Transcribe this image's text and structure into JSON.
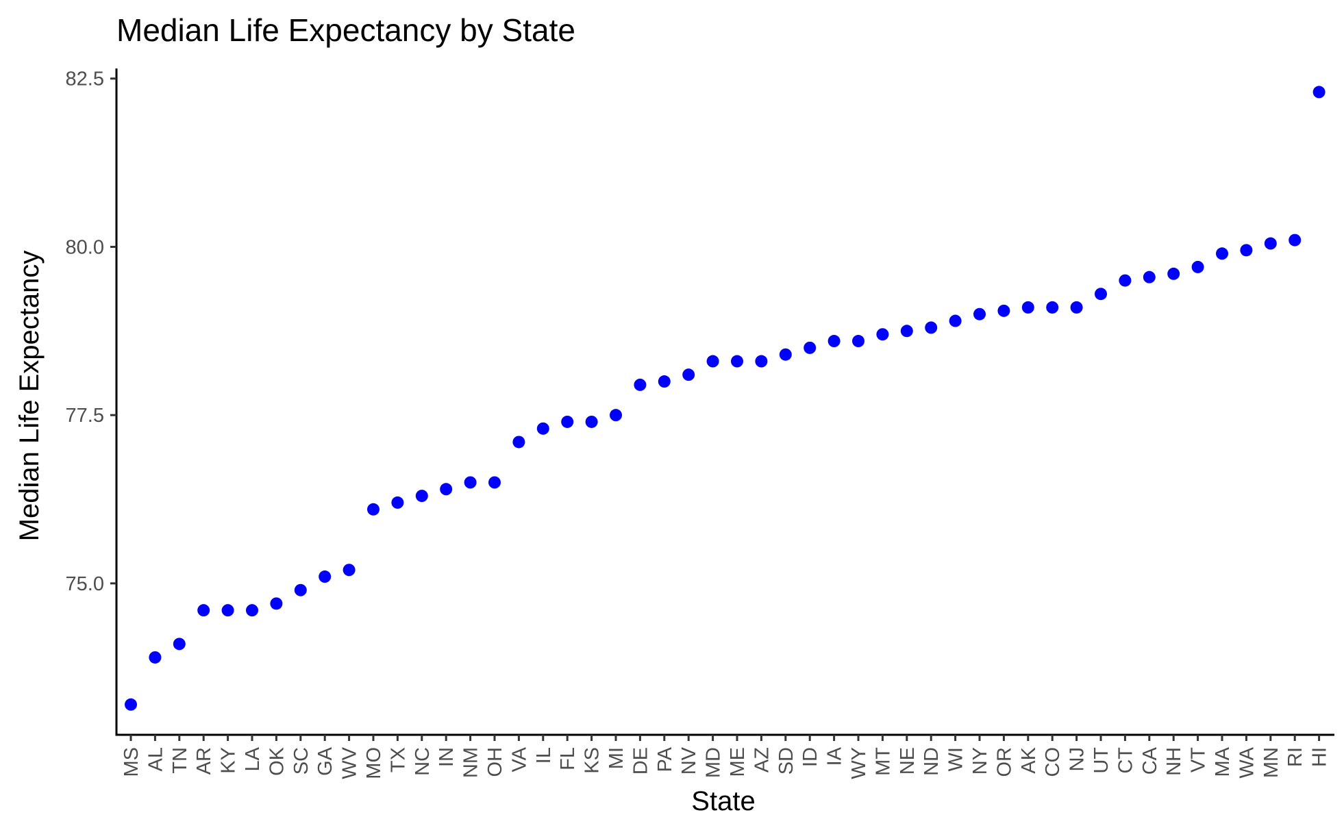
{
  "chart_data": {
    "type": "scatter",
    "title": "Median Life Expectancy by State",
    "xlabel": "State",
    "ylabel": "Median Life Expectancy",
    "ylim": [
      72.75,
      82.65
    ],
    "yticks": [
      "75.0",
      "77.5",
      "80.0",
      "82.5"
    ],
    "ytick_values": [
      75.0,
      77.5,
      80.0,
      82.5
    ],
    "grid": false,
    "point_color": "#0000ff",
    "categories": [
      "MS",
      "AL",
      "TN",
      "AR",
      "KY",
      "LA",
      "OK",
      "SC",
      "GA",
      "WV",
      "MO",
      "TX",
      "NC",
      "IN",
      "NM",
      "OH",
      "VA",
      "IL",
      "FL",
      "KS",
      "MI",
      "DE",
      "PA",
      "NV",
      "MD",
      "ME",
      "AZ",
      "SD",
      "ID",
      "IA",
      "WY",
      "MT",
      "NE",
      "ND",
      "WI",
      "NY",
      "OR",
      "AK",
      "CO",
      "NJ",
      "UT",
      "CT",
      "CA",
      "NH",
      "VT",
      "MA",
      "WA",
      "MN",
      "RI",
      "HI"
    ],
    "values": [
      73.2,
      73.9,
      74.1,
      74.6,
      74.6,
      74.6,
      74.7,
      74.9,
      75.1,
      75.2,
      76.1,
      76.2,
      76.3,
      76.4,
      76.5,
      76.5,
      77.1,
      77.3,
      77.4,
      77.4,
      77.5,
      77.95,
      78.0,
      78.1,
      78.3,
      78.3,
      78.3,
      78.4,
      78.5,
      78.6,
      78.6,
      78.7,
      78.75,
      78.8,
      78.9,
      79.0,
      79.05,
      79.1,
      79.1,
      79.1,
      79.3,
      79.5,
      79.55,
      79.6,
      79.7,
      79.9,
      79.95,
      80.05,
      80.1,
      82.3
    ]
  }
}
